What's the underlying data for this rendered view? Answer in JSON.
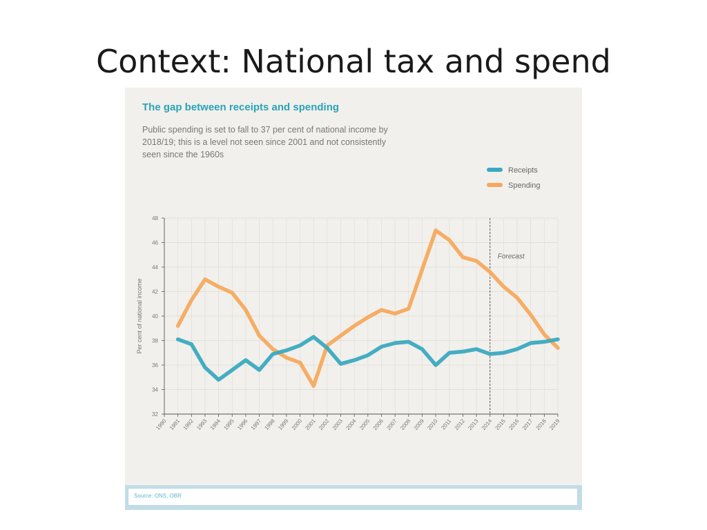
{
  "slide": {
    "title": "Context: National tax and spend"
  },
  "colors": {
    "receipts": "#3aa9c0",
    "spending": "#f6a95e",
    "grid": "#dedbd3",
    "axis": "#555555",
    "panel": "#f1f0ec"
  },
  "source": "Source: ONS, OBR",
  "chart_data": {
    "type": "line",
    "title": "The gap between receipts and spending",
    "subtitle": "Public spending is set to fall to 37 per cent of national income by 2018/19; this is a level not seen since 2001 and not consistently seen since the 1960s",
    "xlabel": "",
    "ylabel": "Per cent of national income",
    "ylim": [
      32,
      48
    ],
    "yticks": [
      32,
      34,
      36,
      38,
      40,
      42,
      44,
      46,
      48
    ],
    "x": [
      "1990",
      "1991",
      "1992",
      "1993",
      "1994",
      "1995",
      "1996",
      "1997",
      "1998",
      "1999",
      "2000",
      "2001",
      "2002",
      "2003",
      "2004",
      "2005",
      "2006",
      "2007",
      "2008",
      "2009",
      "2010",
      "2011",
      "2012",
      "2013",
      "2014",
      "2015",
      "2016",
      "2017",
      "2018",
      "2019"
    ],
    "forecast_from": "2014",
    "forecast_label": "Forecast",
    "legend": "top-right",
    "series": [
      {
        "name": "Receipts",
        "color_key": "receipts",
        "values": [
          null,
          38.1,
          37.7,
          35.8,
          34.8,
          35.6,
          36.4,
          35.6,
          36.9,
          37.2,
          37.6,
          38.3,
          37.4,
          36.1,
          36.4,
          36.8,
          37.5,
          37.8,
          37.9,
          37.3,
          36.0,
          37.0,
          37.1,
          37.3,
          36.9,
          37.0,
          37.3,
          37.8,
          37.9,
          38.1
        ]
      },
      {
        "name": "Spending",
        "color_key": "spending",
        "values": [
          null,
          39.2,
          41.3,
          43.0,
          42.4,
          41.9,
          40.5,
          38.4,
          37.3,
          36.6,
          36.2,
          34.3,
          37.6,
          38.4,
          39.2,
          39.9,
          40.5,
          40.2,
          40.6,
          43.8,
          47.0,
          46.2,
          44.8,
          44.5,
          43.6,
          42.4,
          41.5,
          40.1,
          38.5,
          37.4
        ]
      }
    ]
  }
}
